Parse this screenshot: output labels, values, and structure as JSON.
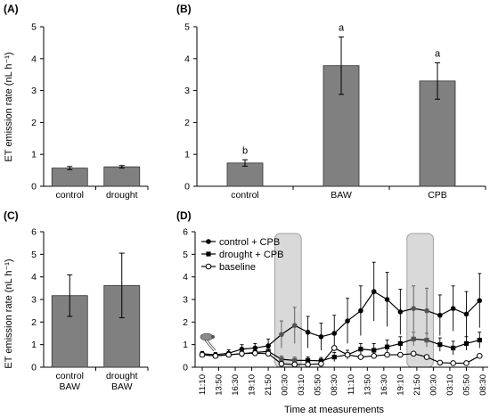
{
  "chart_data": [
    {
      "panel": "(A)",
      "type": "bar",
      "categories": [
        [
          "control"
        ],
        [
          "drought"
        ]
      ],
      "values": [
        0.57,
        0.61
      ],
      "errors": [
        0.05,
        0.04
      ],
      "ylabel": "ET emission rate (nL h⁻¹)",
      "ylim": [
        0,
        5
      ],
      "yticks": [
        "0",
        "1",
        "2",
        "3",
        "4",
        "5"
      ],
      "bar_color": "#808080",
      "grid": false
    },
    {
      "panel": "(B)",
      "type": "bar",
      "categories": [
        [
          "control"
        ],
        [
          "BAW"
        ],
        [
          "CPB"
        ]
      ],
      "values": [
        0.73,
        3.78,
        3.3
      ],
      "errors": [
        0.1,
        0.9,
        0.57
      ],
      "significance": [
        "b",
        "a",
        "a"
      ],
      "ylim": [
        0,
        5
      ],
      "yticks": [
        "0",
        "1",
        "2",
        "3",
        "4",
        "5"
      ],
      "bar_color": "#808080",
      "grid": false
    },
    {
      "panel": "(C)",
      "type": "bar",
      "categories": [
        [
          "control",
          "BAW"
        ],
        [
          "drought",
          "BAW"
        ]
      ],
      "values": [
        3.17,
        3.62
      ],
      "errors": [
        0.92,
        1.43
      ],
      "ylabel": "ET emission rate (nL h⁻¹)",
      "ylim": [
        0,
        6
      ],
      "yticks": [
        "0",
        "1",
        "2",
        "3",
        "4",
        "5",
        "6"
      ],
      "bar_color": "#808080",
      "grid": false
    },
    {
      "panel": "(D)",
      "type": "line",
      "xlabel": "Time at measurements",
      "ylim": [
        0,
        6
      ],
      "yticks": [
        "0",
        "1",
        "2",
        "3",
        "4",
        "5",
        "6"
      ],
      "xticks": [
        "11:10",
        "13:50",
        "16:30",
        "19:10",
        "21:50",
        "00:30",
        "03:10",
        "05:50",
        "08:30",
        "11:10",
        "13:50",
        "16:30",
        "19:10",
        "21:50",
        "00:30",
        "03:10",
        "05:50",
        "08:30"
      ],
      "night_periods": [
        [
          22,
          30
        ],
        [
          62,
          70
        ]
      ],
      "x": [
        0,
        1,
        2,
        3,
        4,
        5,
        6,
        7,
        8,
        9,
        10,
        11,
        12,
        13,
        14,
        15,
        16,
        17,
        18,
        19,
        20,
        21,
        22,
        23,
        24,
        25,
        26,
        27,
        28,
        29,
        30,
        31,
        32,
        33,
        34,
        35,
        36,
        37,
        38,
        39,
        40,
        41,
        42,
        43,
        44,
        45,
        46,
        47,
        48,
        49,
        50,
        51,
        52,
        53,
        54,
        55,
        56,
        57,
        58,
        59,
        60,
        61,
        62,
        63,
        64,
        65,
        66,
        67,
        68,
        69,
        70,
        71,
        72,
        73,
        74,
        75,
        76,
        77,
        78,
        79,
        80,
        81,
        82,
        83,
        84,
        85
      ],
      "series": [
        {
          "name": "control + CPB",
          "marker": "circle-filled",
          "color": "#000000",
          "x": [
            0,
            4,
            8,
            12,
            16,
            20,
            24,
            28,
            32,
            36,
            40,
            44,
            48,
            52,
            56,
            60,
            64,
            68,
            72,
            76,
            80,
            84
          ],
          "values": [
            0.6,
            0.55,
            0.62,
            0.8,
            0.85,
            0.95,
            1.45,
            1.85,
            1.55,
            1.35,
            1.5,
            2.05,
            2.5,
            3.35,
            3.0,
            2.45,
            2.6,
            2.5,
            2.3,
            2.6,
            2.35,
            2.95
          ],
          "errors": [
            0.1,
            0.1,
            0.15,
            0.2,
            0.2,
            0.3,
            0.6,
            0.8,
            0.7,
            0.6,
            0.8,
            1.0,
            1.1,
            1.3,
            1.2,
            1.0,
            1.0,
            1.0,
            0.9,
            1.0,
            1.0,
            1.2
          ]
        },
        {
          "name": "drought + CPB",
          "marker": "square-filled",
          "color": "#000000",
          "x": [
            0,
            4,
            8,
            12,
            16,
            20,
            24,
            28,
            32,
            36,
            40,
            44,
            48,
            52,
            56,
            60,
            64,
            68,
            72,
            76,
            80,
            84
          ],
          "values": [
            0.55,
            0.5,
            0.55,
            0.6,
            0.65,
            0.7,
            0.35,
            0.3,
            0.3,
            0.28,
            0.45,
            0.55,
            0.8,
            0.75,
            0.9,
            1.05,
            1.25,
            1.2,
            1.0,
            0.85,
            1.05,
            1.2
          ],
          "errors": [
            0.1,
            0.1,
            0.1,
            0.15,
            0.15,
            0.15,
            0.15,
            0.15,
            0.15,
            0.15,
            0.2,
            0.2,
            0.25,
            0.3,
            0.3,
            0.3,
            0.3,
            0.3,
            0.3,
            0.3,
            0.3,
            0.35
          ]
        },
        {
          "name": "baseline",
          "marker": "circle-open",
          "color": "#000000",
          "x": [
            0,
            4,
            8,
            12,
            16,
            20,
            24,
            28,
            32,
            36,
            40,
            44,
            48,
            52,
            56,
            60,
            64,
            68,
            72,
            76,
            80,
            84
          ],
          "values": [
            0.55,
            0.5,
            0.55,
            0.6,
            0.62,
            0.6,
            0.15,
            0.12,
            0.12,
            0.15,
            0.85,
            0.55,
            0.45,
            0.5,
            0.55,
            0.55,
            0.6,
            0.45,
            0.2,
            0.18,
            0.18,
            0.5
          ],
          "errors": [
            0.05,
            0.05,
            0.05,
            0.05,
            0.05,
            0.05,
            0.03,
            0.03,
            0.03,
            0.03,
            0.08,
            0.05,
            0.05,
            0.05,
            0.05,
            0.05,
            0.05,
            0.05,
            0.03,
            0.03,
            0.03,
            0.05
          ]
        }
      ],
      "legend": "top-left",
      "grid": false
    }
  ]
}
